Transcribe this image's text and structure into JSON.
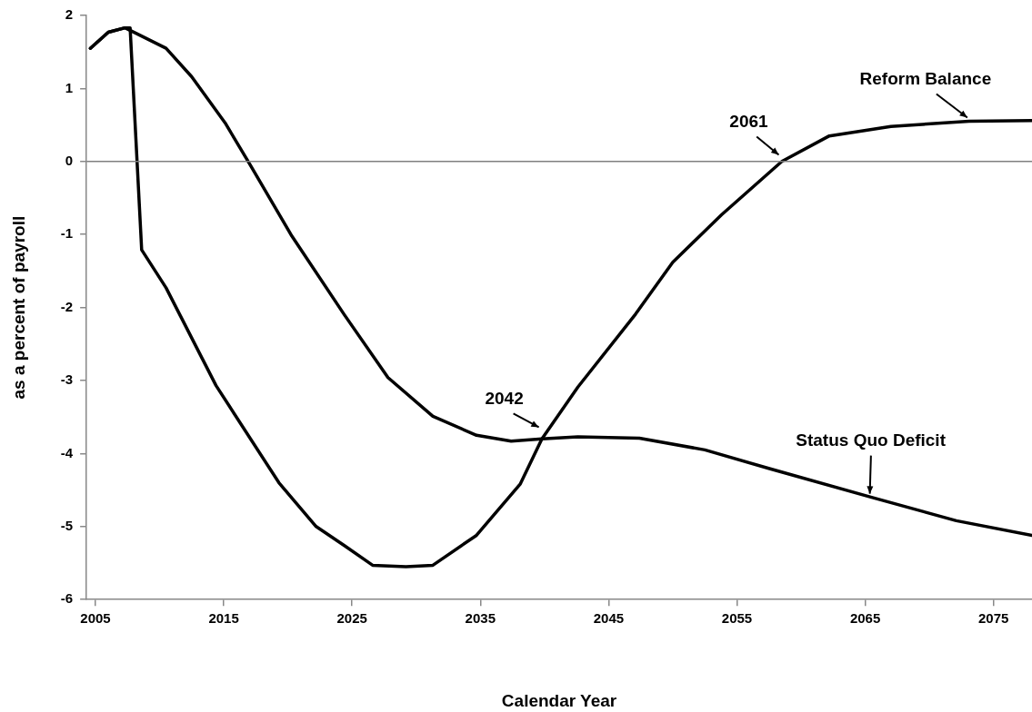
{
  "chart_data": {
    "type": "line",
    "xlabel": "Calendar Year",
    "ylabel": "as a percent of payroll",
    "xlim": [
      2004.3,
      2078
    ],
    "xticks": [
      2005,
      2015,
      2025,
      2035,
      2045,
      2055,
      2065,
      2075
    ],
    "ylim": [
      -6,
      2
    ],
    "yticks": [
      -6,
      -5,
      -4,
      -3,
      -2,
      -1,
      0,
      1,
      2
    ],
    "ref_lines": [
      {
        "axis": "y",
        "value": 0,
        "color": "#808080"
      }
    ],
    "series": [
      {
        "color": "#000000",
        "x": [
          2004.6,
          2006,
          2007.3,
          2010.5,
          2012.5,
          2015.1,
          2017,
          2020.3,
          2024.4,
          2027.8,
          2031.3,
          2034.7,
          2037.4,
          2039.8,
          2042.6,
          2047.4,
          2052.5,
          2057.6,
          2065.5,
          2072.1,
          2078
        ],
        "values": [
          1.55,
          1.77,
          1.83,
          1.55,
          1.16,
          0.53,
          -0.03,
          -1.02,
          -2.1,
          -2.96,
          -3.49,
          -3.75,
          -3.83,
          -3.8,
          -3.77,
          -3.79,
          -3.95,
          -4.21,
          -4.6,
          -4.92,
          -5.12
        ]
      },
      {
        "color": "#000000",
        "x": [
          2004.6,
          2006,
          2007.3,
          2007.7,
          2008.6,
          2010.5,
          2014.4,
          2019.3,
          2022.2,
          2024.4,
          2026.6,
          2029.2,
          2031.3,
          2034.7,
          2038.1,
          2039.8,
          2042.6,
          2047.1,
          2050,
          2053.8,
          2058.5,
          2062.2,
          2067,
          2073.1,
          2078
        ],
        "values": [
          1.55,
          1.77,
          1.83,
          1.83,
          -1.21,
          -1.73,
          -3.07,
          -4.4,
          -5,
          -5.26,
          -5.53,
          -5.55,
          -5.53,
          -5.12,
          -4.42,
          -3.8,
          -3.09,
          -2.09,
          -1.38,
          -0.73,
          0,
          0.35,
          0.48,
          0.55,
          0.56
        ]
      }
    ],
    "annotations": [
      {
        "text": "Reform Balance",
        "x": 2073.1,
        "y": 0.55
      },
      {
        "text": "2061",
        "x": 2058.4,
        "y": 0.04
      },
      {
        "text": "2042",
        "x": 2039.7,
        "y": -3.69
      },
      {
        "text": "Status Quo Deficit",
        "x": 2065.5,
        "y": -4.6
      }
    ]
  }
}
